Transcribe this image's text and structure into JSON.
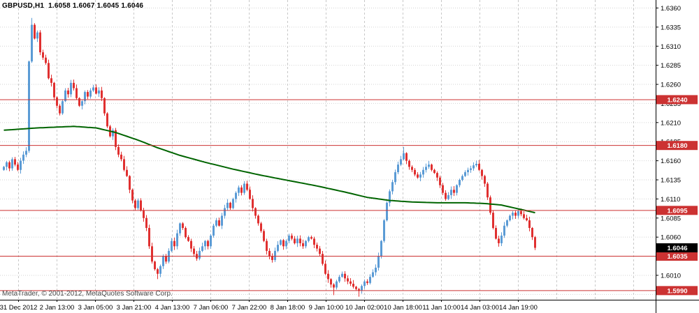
{
  "window": {
    "title_line": "GBPUSD,H1  1.6058 1.6067 1.6045 1.6046",
    "copyright": "MetaTrader, © 2001-2012, MetaQuotes Software Corp."
  },
  "chart_data": {
    "type": "candlestick",
    "symbol": "GBPUSD",
    "timeframe": "H1",
    "ohlc_display": {
      "open": "1.6058",
      "high": "1.6067",
      "low": "1.6045",
      "close": "1.6046"
    },
    "title": "GBPUSD,H1",
    "ylim": [
      1.5978,
      1.6365
    ],
    "y_grid_top": 1.636,
    "y_grid_step": 0.0025,
    "grid": true,
    "y_ticks": [
      1.636,
      1.6335,
      1.631,
      1.6285,
      1.626,
      1.6235,
      1.621,
      1.6185,
      1.616,
      1.6135,
      1.611,
      1.6085,
      1.606,
      1.601
    ],
    "x_labels": [
      "31 Dec 2012",
      "2 Jan 13:00",
      "3 Jan 05:00",
      "3 Jan 21:00",
      "4 Jan 13:00",
      "7 Jan 06:00",
      "7 Jan 22:00",
      "8 Jan 18:00",
      "9 Jan 10:00",
      "10 Jan 02:00",
      "10 Jan 18:00",
      "11 Jan 10:00",
      "14 Jan 03:00",
      "14 Jan 19:00"
    ],
    "hlines": [
      1.624,
      1.618,
      1.6095,
      1.6035,
      1.599
    ],
    "current_price": 1.6046,
    "first_open": 1.6148,
    "closes": [
      1.6152,
      1.6158,
      1.615,
      1.6162,
      1.6155,
      1.6148,
      1.616,
      1.6168,
      1.6173,
      1.629,
      1.6338,
      1.632,
      1.6328,
      1.6302,
      1.6295,
      1.6288,
      1.6268,
      1.6262,
      1.6243,
      1.6232,
      1.6222,
      1.6238,
      1.6252,
      1.6247,
      1.6262,
      1.6255,
      1.6242,
      1.6232,
      1.6238,
      1.625,
      1.6244,
      1.6252,
      1.6256,
      1.6248,
      1.6252,
      1.6242,
      1.6222,
      1.6205,
      1.6192,
      1.62,
      1.6178,
      1.6168,
      1.6162,
      1.6148,
      1.614,
      1.6122,
      1.6108,
      1.6098,
      1.6108,
      1.6095,
      1.6085,
      1.6072,
      1.6048,
      1.6028,
      1.6018,
      1.6012,
      1.6022,
      1.6035,
      1.6028,
      1.6042,
      1.6055,
      1.6048,
      1.6065,
      1.6078,
      1.6072,
      1.606,
      1.6055,
      1.6045,
      1.6038,
      1.6032,
      1.6042,
      1.6048,
      1.6055,
      1.6048,
      1.6062,
      1.6075,
      1.6082,
      1.6075,
      1.6088,
      1.6098,
      1.6105,
      1.6098,
      1.611,
      1.6118,
      1.6125,
      1.6118,
      1.613,
      1.6122,
      1.611,
      1.6098,
      1.6088,
      1.6078,
      1.6068,
      1.6055,
      1.6042,
      1.6035,
      1.603,
      1.6042,
      1.605,
      1.6056,
      1.6048,
      1.6055,
      1.6062,
      1.6058,
      1.6052,
      1.6058,
      1.6052,
      1.6048,
      1.6055,
      1.606,
      1.6058,
      1.605,
      1.6045,
      1.6038,
      1.6025,
      1.6012,
      1.6005,
      1.5998,
      1.5994,
      1.6002,
      1.6008,
      1.6012,
      1.6006,
      1.6002,
      1.5999,
      1.5995,
      1.5992,
      1.599,
      1.5996,
      1.6002,
      1.6,
      1.6008,
      1.6014,
      1.602,
      1.6035,
      1.6055,
      1.6082,
      1.6105,
      1.612,
      1.6132,
      1.6145,
      1.6155,
      1.6162,
      1.617,
      1.616,
      1.6152,
      1.6148,
      1.6142,
      1.6138,
      1.6142,
      1.6148,
      1.6152,
      1.6155,
      1.6148,
      1.6144,
      1.6138,
      1.6128,
      1.6118,
      1.611,
      1.6115,
      1.6122,
      1.6118,
      1.6128,
      1.6135,
      1.614,
      1.6145,
      1.6148,
      1.615,
      1.6154,
      1.6156,
      1.6148,
      1.614,
      1.613,
      1.6112,
      1.6092,
      1.6072,
      1.6058,
      1.6052,
      1.6062,
      1.6075,
      1.6082,
      1.6088,
      1.6092,
      1.6088,
      1.6094,
      1.609,
      1.6085,
      1.6082,
      1.6072,
      1.606,
      1.6046
    ],
    "wick_high_overrides": {
      "10": 1.6347,
      "143": 1.6178
    },
    "wick_low_overrides": {
      "55": 1.6005,
      "118": 1.5984,
      "127": 1.5982
    },
    "ma_points": [
      [
        0,
        1.62
      ],
      [
        12,
        1.6203
      ],
      [
        25,
        1.6205
      ],
      [
        33,
        1.6203
      ],
      [
        40,
        1.6197
      ],
      [
        48,
        1.6187
      ],
      [
        55,
        1.6177
      ],
      [
        63,
        1.6167
      ],
      [
        72,
        1.6158
      ],
      [
        82,
        1.6149
      ],
      [
        92,
        1.6141
      ],
      [
        102,
        1.6134
      ],
      [
        112,
        1.6127
      ],
      [
        122,
        1.6119
      ],
      [
        130,
        1.6112
      ],
      [
        138,
        1.6108
      ],
      [
        146,
        1.6106
      ],
      [
        155,
        1.6105
      ],
      [
        165,
        1.6105
      ],
      [
        172,
        1.6104
      ],
      [
        178,
        1.6102
      ],
      [
        184,
        1.6097
      ],
      [
        190,
        1.6092
      ]
    ],
    "colors": {
      "background": "#ffffff",
      "grid": "#d3d3d3",
      "bull": "#5b9bd5",
      "bear": "#e03030",
      "ma_line": "#006400",
      "hline": "#cc3232",
      "hline_label_bg": "#cc3232",
      "current_label_bg": "#000000",
      "axis_line": "#000000",
      "axis_text": "#000000",
      "label_text": "#ffffff"
    },
    "legend_position": "none"
  }
}
